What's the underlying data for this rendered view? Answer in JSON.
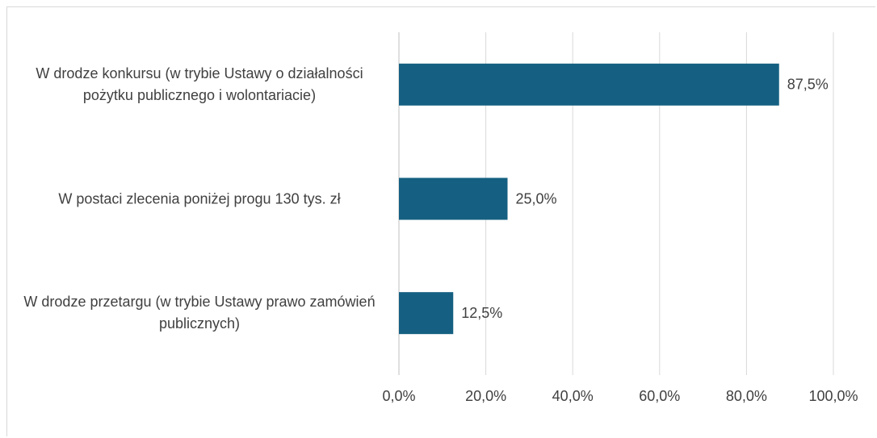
{
  "chart_data": {
    "type": "barh",
    "categories": [
      "W drodze konkursu (w trybie Ustawy o działalności pożytku publicznego i wolontariacie)",
      "W postaci zlecenia poniżej progu 130 tys. zł",
      "W drodze przetargu (w trybie Ustawy prawo zamówień publicznych)"
    ],
    "values": [
      87.5,
      25.0,
      12.5
    ],
    "value_labels": [
      "87,5%",
      "25,0%",
      "12,5%"
    ],
    "color": "#156082",
    "xlim": [
      0,
      100
    ],
    "xticks": [
      {
        "value": 0,
        "label": "0,0%"
      },
      {
        "value": 20,
        "label": "20,0%"
      },
      {
        "value": 40,
        "label": "40,0%"
      },
      {
        "value": 60,
        "label": "60,0%"
      },
      {
        "value": 80,
        "label": "80,0%"
      },
      {
        "value": 100,
        "label": "100,0%"
      }
    ],
    "grid": true
  }
}
